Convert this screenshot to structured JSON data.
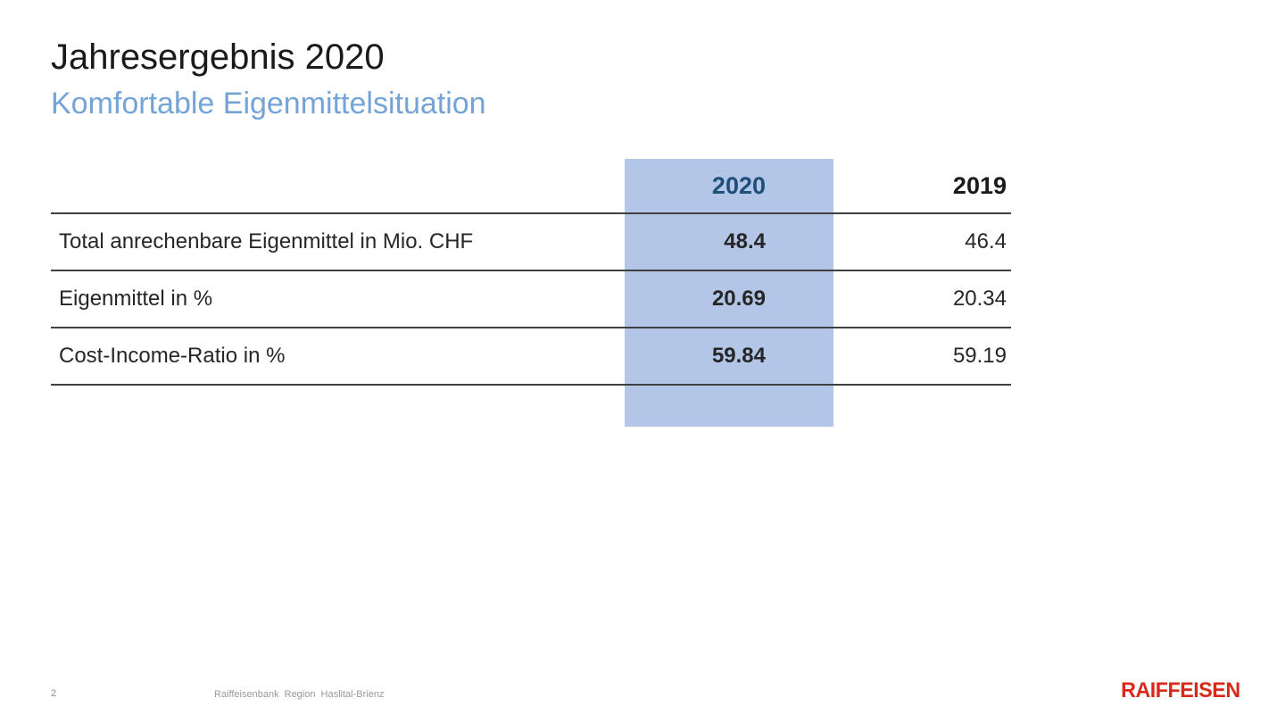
{
  "header": {
    "title": "Jahresergebnis 2020",
    "subtitle": "Komfortable Eigenmittelsituation"
  },
  "table": {
    "columns": {
      "col2020": "2020",
      "col2019": "2019"
    },
    "rows": [
      {
        "label": "Total anrechenbare Eigenmittel in Mio. CHF",
        "v2020": "48.4",
        "v2019": "46.4"
      },
      {
        "label": "Eigenmittel in %",
        "v2020": "20.69",
        "v2019": "20.34"
      },
      {
        "label": "Cost-Income-Ratio in %",
        "v2020": "59.84",
        "v2019": "59.19"
      }
    ],
    "highlight_color": "#b4c6e7",
    "header_2020_color": "#1f4e79",
    "line_color": "#404040"
  },
  "footer": {
    "page_number": "2",
    "company": "Raiffeisenbank Region Haslital-Brienz",
    "logo_text": "RAIFFEISEN",
    "logo_color": "#d9291c"
  },
  "chart_data": {
    "type": "table",
    "title": "Jahresergebnis 2020 — Komfortable Eigenmittelsituation",
    "columns": [
      "",
      "2020",
      "2019"
    ],
    "rows": [
      [
        "Total anrechenbare Eigenmittel in Mio. CHF",
        48.4,
        46.4
      ],
      [
        "Eigenmittel in %",
        20.69,
        20.34
      ],
      [
        "Cost-Income-Ratio in %",
        59.84,
        59.19
      ]
    ],
    "highlighted_column": "2020"
  }
}
